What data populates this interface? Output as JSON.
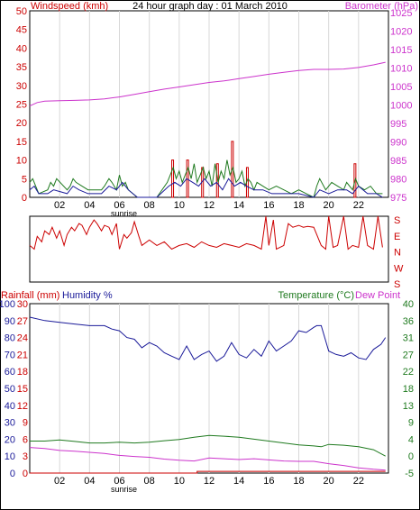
{
  "chart_data": [
    {
      "type": "line",
      "title": "24 hour graph day : 01 March 2010",
      "left_label": "Windspeed (kmh)",
      "right_label": "Barometer (hPa)",
      "x_ticks": [
        "02",
        "04",
        "06",
        "08",
        "10",
        "12",
        "14",
        "16",
        "18",
        "20",
        "22"
      ],
      "x_subtick": "sunrise",
      "left_ticks": [
        "50",
        "45",
        "40",
        "35",
        "30",
        "25",
        "20",
        "15",
        "10",
        "5",
        "0"
      ],
      "right_ticks": [
        "1025",
        "1020",
        "1015",
        "1010",
        "1005",
        "1000",
        "995",
        "990",
        "985",
        "980",
        "975"
      ],
      "ylim_left": [
        0,
        50
      ],
      "ylim_right": [
        975,
        1025
      ],
      "x_range_hours": [
        0,
        24
      ],
      "grid": "vertical",
      "colors": {
        "barometer": "#cc33cc",
        "wind_avg": "#1a1a99",
        "wind_gust": "#1f7a1f",
        "wind_max": "#cc0000",
        "grid": "#d8d8d8",
        "left_axis": "#cc0000",
        "right_axis": "#cc33cc"
      },
      "series": [
        {
          "name": "Barometer (hPa)",
          "x": [
            0,
            0.5,
            1,
            2,
            3,
            4,
            5,
            6,
            7,
            8,
            9,
            10,
            11,
            12,
            13,
            14,
            15,
            16,
            17,
            18,
            19,
            20,
            21,
            22,
            23,
            23.8
          ],
          "values": [
            999.5,
            1000.4,
            1000.8,
            1000.9,
            1001.0,
            1001.1,
            1001.4,
            1001.9,
            1002.6,
            1003.3,
            1004.0,
            1004.6,
            1005.2,
            1005.8,
            1006.2,
            1006.8,
            1007.4,
            1008.0,
            1008.5,
            1009.0,
            1009.3,
            1009.3,
            1009.4,
            1009.8,
            1010.5,
            1011.2
          ]
        },
        {
          "name": "Wind gust (kmh)",
          "x": [
            0,
            0.2,
            0.4,
            0.6,
            1.2,
            1.4,
            1.6,
            1.8,
            2.5,
            2.7,
            2.9,
            3.1,
            3.5,
            3.9,
            4.8,
            5.0,
            5.3,
            5.5,
            5.8,
            6.0,
            6.2,
            6.4,
            6.6,
            7.2,
            7.8,
            8.5,
            9.2,
            9.4,
            9.6,
            9.8,
            10.0,
            10.2,
            10.4,
            10.6,
            10.8,
            11.0,
            11.2,
            11.4,
            11.6,
            11.8,
            12.0,
            12.2,
            12.4,
            12.6,
            12.8,
            13.0,
            13.2,
            13.4,
            13.6,
            13.8,
            14.0,
            14.2,
            14.4,
            14.6,
            14.8,
            15.0,
            15.2,
            15.6,
            16.0,
            16.5,
            17.0,
            17.5,
            18.0,
            18.5,
            19.0,
            19.2,
            19.4,
            19.8,
            20.2,
            20.6,
            21.0,
            21.2,
            21.4,
            21.6,
            21.8,
            22.0,
            22.4,
            22.8,
            23.2,
            23.6
          ],
          "values": [
            4,
            5,
            3,
            1,
            2,
            4,
            3,
            5,
            2,
            3,
            5,
            4,
            3,
            2,
            2,
            3,
            5,
            4,
            2,
            6,
            3,
            4,
            2,
            0,
            0,
            0,
            4,
            6,
            8,
            5,
            7,
            4,
            6,
            8,
            5,
            9,
            4,
            6,
            8,
            5,
            7,
            3,
            9,
            4,
            7,
            5,
            10,
            6,
            8,
            4,
            5,
            7,
            3,
            5,
            4,
            2,
            4,
            3,
            2,
            3,
            2,
            1,
            2,
            1,
            0,
            3,
            5,
            2,
            4,
            3,
            2,
            4,
            3,
            2,
            5,
            3,
            2,
            3,
            1,
            1
          ]
        },
        {
          "name": "Wind avg (kmh)",
          "x": [
            0,
            0.3,
            0.6,
            1.2,
            1.6,
            2.5,
            2.9,
            3.3,
            3.9,
            4.8,
            5.3,
            5.8,
            6.2,
            6.6,
            7.2,
            8.5,
            9.3,
            9.7,
            10.1,
            10.5,
            10.9,
            11.3,
            11.7,
            12.1,
            12.5,
            12.9,
            13.3,
            13.7,
            14.1,
            14.5,
            15.0,
            15.6,
            16.2,
            17.0,
            18.0,
            19.0,
            19.4,
            20.0,
            20.6,
            21.2,
            21.6,
            22.0,
            22.6,
            23.2,
            23.6
          ],
          "values": [
            2,
            3,
            1,
            1,
            2,
            1,
            3,
            2,
            1,
            1,
            3,
            2,
            4,
            2,
            0,
            0,
            3,
            4,
            3,
            5,
            4,
            3,
            5,
            3,
            4,
            2,
            5,
            3,
            4,
            3,
            2,
            2,
            1,
            1,
            1,
            0,
            2,
            1,
            2,
            2,
            1,
            3,
            1,
            1,
            0
          ]
        },
        {
          "name": "Wind max (kmh)",
          "x": [
            9.5,
            9.6,
            10.5,
            10.6,
            11.5,
            11.6,
            12.5,
            12.6,
            13.5,
            13.6,
            14.5,
            14.6,
            21.7,
            21.8
          ],
          "values": [
            10,
            10,
            10,
            10,
            8,
            8,
            9,
            9,
            15,
            15,
            8,
            8,
            9,
            9
          ]
        }
      ]
    },
    {
      "type": "line",
      "right_labels": [
        "S",
        "E",
        "N",
        "W",
        "S"
      ],
      "x_range_hours": [
        0,
        24
      ],
      "colors": {
        "direction": "#cc0000",
        "labels": "#cc0000"
      },
      "series": [
        {
          "name": "Wind direction",
          "x": [
            0,
            0.3,
            0.5,
            0.8,
            1.0,
            1.3,
            1.5,
            1.8,
            2.0,
            2.3,
            2.5,
            2.8,
            3.0,
            3.3,
            3.5,
            3.8,
            4.0,
            4.3,
            4.5,
            4.8,
            5.0,
            5.3,
            5.5,
            5.8,
            6.0,
            6.3,
            6.5,
            6.8,
            7.0,
            7.3,
            7.5,
            8.0,
            8.5,
            9.0,
            9.5,
            10.0,
            10.5,
            11.0,
            11.5,
            12.0,
            12.5,
            13.0,
            13.5,
            14.0,
            14.5,
            15.0,
            15.5,
            15.8,
            16.0,
            16.3,
            16.5,
            17.0,
            17.3,
            17.6,
            18.0,
            18.3,
            18.6,
            19.0,
            19.5,
            19.8,
            20.0,
            20.3,
            20.6,
            21.0,
            21.3,
            21.6,
            22.0,
            22.3,
            22.6,
            23.0,
            23.3,
            23.6
          ],
          "values": [
            200,
            180,
            250,
            220,
            280,
            260,
            300,
            240,
            280,
            200,
            260,
            300,
            280,
            320,
            310,
            260,
            300,
            340,
            320,
            280,
            310,
            300,
            260,
            320,
            180,
            260,
            240,
            270,
            330,
            250,
            200,
            230,
            200,
            220,
            180,
            200,
            210,
            190,
            220,
            200,
            190,
            210,
            200,
            190,
            210,
            200,
            180,
            360,
            200,
            340,
            180,
            200,
            320,
            300,
            310,
            300,
            305,
            300,
            200,
            180,
            360,
            190,
            200,
            360,
            180,
            200,
            190,
            360,
            200,
            180,
            360,
            190
          ]
        }
      ]
    },
    {
      "type": "line",
      "left_label_1": "Rainfall (mm)",
      "left_label_2": "Humidity %",
      "right_label_1": "Temperature (°C)",
      "right_label_2": "Dew Point",
      "x_ticks": [
        "02",
        "04",
        "06",
        "08",
        "10",
        "12",
        "14",
        "16",
        "18",
        "20",
        "22"
      ],
      "x_subtick": "sunrise",
      "humidity_ticks": [
        "100",
        "90",
        "80",
        "70",
        "60",
        "50",
        "40",
        "30",
        "20",
        "10",
        "0"
      ],
      "rain_ticks": [
        "30",
        "27",
        "24",
        "21",
        "18",
        "15",
        "12",
        "9",
        "6",
        "3",
        "0"
      ],
      "temp_ticks": [
        "40",
        "36",
        "31",
        "27",
        "22",
        "18",
        "13",
        "9",
        "4",
        "0",
        "-5"
      ],
      "ylim_humidity": [
        0,
        100
      ],
      "ylim_rain": [
        0,
        30
      ],
      "ylim_temp": [
        -5,
        40
      ],
      "x_range_hours": [
        0,
        24
      ],
      "colors": {
        "humidity": "#1a1a99",
        "temperature": "#1f7a1f",
        "dewpoint": "#cc33cc",
        "rain": "#cc0000",
        "rain_labels": "#cc0000",
        "humidity_labels": "#1a1a99",
        "temp_labels": "#1f7a1f"
      },
      "series": [
        {
          "name": "Humidity %",
          "x": [
            0,
            1,
            2,
            3,
            4,
            5,
            5.5,
            6,
            6.5,
            7,
            7.5,
            8,
            8.5,
            9,
            9.5,
            10,
            10.5,
            11,
            11.5,
            12,
            12.5,
            13,
            13.5,
            14,
            14.5,
            15,
            15.5,
            16,
            16.5,
            17,
            17.5,
            18,
            18.5,
            19,
            19.2,
            19.5,
            20,
            20.5,
            21,
            21.5,
            22,
            22.5,
            23,
            23.5,
            23.8
          ],
          "values": [
            92,
            90,
            89,
            88,
            87,
            87,
            85,
            84,
            80,
            79,
            74,
            77,
            75,
            71,
            69,
            67,
            75,
            67,
            70,
            72,
            66,
            69,
            77,
            70,
            68,
            73,
            69,
            78,
            72,
            75,
            78,
            84,
            83,
            86,
            87,
            87,
            72,
            70,
            69,
            71,
            68,
            67,
            73,
            76,
            80
          ]
        },
        {
          "name": "Temperature (°C)",
          "x": [
            0,
            1,
            2,
            3,
            4,
            5,
            6,
            7,
            8,
            9,
            10,
            11,
            12,
            13,
            14,
            15,
            16,
            17,
            18,
            19,
            19.5,
            20,
            21,
            22,
            23,
            23.8
          ],
          "values": [
            3.5,
            3.5,
            3.8,
            3.4,
            3.0,
            3.0,
            3.2,
            3.0,
            3.2,
            3.6,
            3.9,
            4.5,
            5.0,
            4.8,
            4.5,
            4.0,
            3.5,
            3.0,
            2.5,
            2.2,
            2.0,
            2.6,
            2.4,
            2.0,
            1.2,
            -0.5
          ]
        },
        {
          "name": "Dew Point",
          "x": [
            0,
            1,
            2,
            3,
            4,
            5,
            6,
            7,
            8,
            9,
            10,
            11,
            12,
            13,
            14,
            15,
            16,
            17,
            18,
            19,
            20,
            21,
            22,
            23,
            23.8
          ],
          "values": [
            1.8,
            1.5,
            1.0,
            0.8,
            0.5,
            0.2,
            -0.3,
            -0.6,
            -0.8,
            -1.3,
            -1.6,
            -1.8,
            -1.0,
            -1.2,
            -1.4,
            -1.2,
            -1.5,
            -1.8,
            -1.9,
            -1.9,
            -2.5,
            -3.0,
            -3.6,
            -4.0,
            -4.2
          ]
        },
        {
          "name": "Rainfall (mm)",
          "x": [
            0,
            11.2,
            11.2,
            23.8
          ],
          "values": [
            0,
            0,
            0.3,
            0.3
          ]
        }
      ]
    }
  ]
}
